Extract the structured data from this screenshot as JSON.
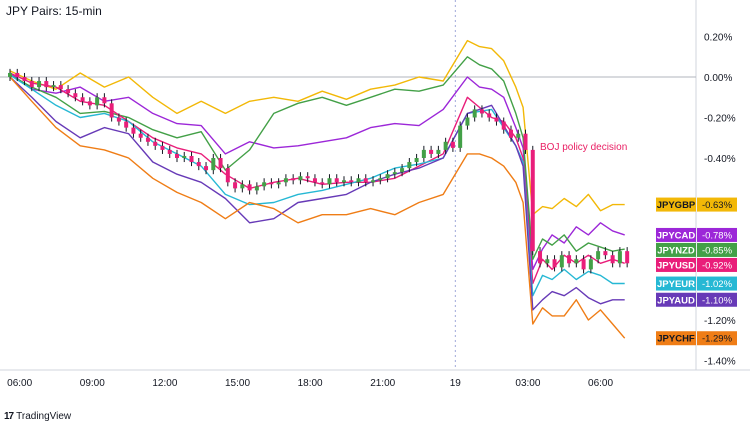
{
  "title": "JPY Pairs: 15-min",
  "watermark": "TradingView",
  "chart_data": {
    "type": "line",
    "ylim": [
      -1.45,
      0.28
    ],
    "y_ticks": [
      "0.20%",
      "0.00%",
      "-0.20%",
      "-0.40%",
      "-1.20%",
      "-1.40%"
    ],
    "y_tick_values": [
      0.2,
      0.0,
      -0.2,
      -0.4,
      -1.2,
      -1.4
    ],
    "x_tick_labels": [
      "06:00",
      "09:00",
      "12:00",
      "15:00",
      "18:00",
      "21:00",
      "19",
      "03:00",
      "06:00"
    ],
    "x_tick_hours": [
      6,
      9,
      12,
      15,
      18,
      21,
      24,
      27,
      30
    ],
    "x_start_hour": 5.6,
    "x_end_hour": 31.3,
    "session_break_hour": 24,
    "annotation": {
      "text": "BOJ policy decision",
      "x_hour": 27.5,
      "y": -0.36
    },
    "series": [
      {
        "name": "JPYGBP",
        "last": "-0.63%",
        "color": "#f2b807",
        "x": [
          5.6,
          6.5,
          7.5,
          8.5,
          9.5,
          10.5,
          11.5,
          12.5,
          13.5,
          14.5,
          15.5,
          16.5,
          17.5,
          18.5,
          19.5,
          20.5,
          21.5,
          22.5,
          23.5,
          24.5,
          25,
          25.5,
          26,
          26.5,
          26.8,
          27.2,
          27.6,
          28,
          28.5,
          29,
          29.5,
          30,
          30.5,
          31
        ],
        "y": [
          0.03,
          -0.02,
          -0.06,
          0.02,
          -0.05,
          0.0,
          -0.1,
          -0.18,
          -0.12,
          -0.18,
          -0.12,
          -0.1,
          -0.12,
          -0.07,
          -0.11,
          -0.06,
          -0.04,
          0.0,
          -0.02,
          0.18,
          0.15,
          0.14,
          0.08,
          -0.05,
          -0.15,
          -0.68,
          -0.64,
          -0.65,
          -0.6,
          -0.64,
          -0.58,
          -0.66,
          -0.63,
          -0.63
        ]
      },
      {
        "name": "JPYCAD",
        "last": "-0.78%",
        "color": "#9c27d8",
        "x": [
          5.6,
          6.5,
          7.5,
          8.5,
          9.5,
          10.5,
          11.5,
          12.5,
          13.5,
          14.5,
          15.5,
          16.5,
          17.5,
          18.5,
          19.5,
          20.5,
          21.5,
          22.5,
          23.5,
          24.5,
          25,
          25.5,
          26,
          26.5,
          26.8,
          27.2,
          27.6,
          28,
          28.5,
          29,
          29.5,
          30,
          30.5,
          31
        ],
        "y": [
          0.02,
          -0.06,
          -0.08,
          -0.05,
          -0.12,
          -0.1,
          -0.18,
          -0.23,
          -0.24,
          -0.38,
          -0.32,
          -0.35,
          -0.34,
          -0.32,
          -0.3,
          -0.25,
          -0.23,
          -0.24,
          -0.16,
          0.0,
          -0.05,
          -0.06,
          -0.1,
          -0.25,
          -0.35,
          -0.95,
          -0.85,
          -0.78,
          -0.82,
          -0.74,
          -0.78,
          -0.72,
          -0.76,
          -0.78
        ]
      },
      {
        "name": "JPYNZD",
        "last": "-0.85%",
        "color": "#43a047",
        "x": [
          5.6,
          6.5,
          7.5,
          8.5,
          9.5,
          10.5,
          11.5,
          12.5,
          13.5,
          14.5,
          15.5,
          16.5,
          17.5,
          18.5,
          19.5,
          20.5,
          21.5,
          22.5,
          23.5,
          24.5,
          25,
          25.5,
          26,
          26.5,
          26.8,
          27.2,
          27.6,
          28,
          28.5,
          29,
          29.5,
          30,
          30.5,
          31
        ],
        "y": [
          0.01,
          -0.05,
          -0.1,
          -0.18,
          -0.17,
          -0.2,
          -0.26,
          -0.3,
          -0.27,
          -0.46,
          -0.36,
          -0.18,
          -0.13,
          -0.1,
          -0.14,
          -0.1,
          -0.06,
          -0.07,
          -0.04,
          0.1,
          0.06,
          0.04,
          -0.02,
          -0.18,
          -0.3,
          -0.9,
          -0.8,
          -0.83,
          -0.78,
          -0.86,
          -0.82,
          -0.84,
          -0.86,
          -0.85
        ]
      },
      {
        "name": "JPYUSD",
        "last": "-0.92%",
        "color": "#e91e7a",
        "x": [
          5.6,
          6.5,
          7.5,
          8.5,
          9.5,
          10.5,
          11.5,
          12.5,
          13.5,
          14.5,
          15.5,
          16.5,
          17.5,
          18.5,
          19.5,
          20.5,
          21.5,
          22.5,
          23.5,
          24.5,
          25,
          25.5,
          26,
          26.5,
          26.8,
          27.2,
          27.6,
          28,
          28.5,
          29,
          29.5,
          30,
          30.5,
          31
        ],
        "y": [
          0.02,
          -0.03,
          -0.05,
          -0.12,
          -0.14,
          -0.22,
          -0.3,
          -0.35,
          -0.38,
          -0.48,
          -0.55,
          -0.52,
          -0.5,
          -0.53,
          -0.52,
          -0.52,
          -0.5,
          -0.44,
          -0.38,
          -0.1,
          -0.15,
          -0.2,
          -0.22,
          -0.3,
          -0.4,
          -1.02,
          -0.9,
          -0.95,
          -0.88,
          -0.92,
          -0.88,
          -0.92,
          -0.9,
          -0.92
        ]
      },
      {
        "name": "JPYEUR",
        "last": "-1.02%",
        "color": "#26b8d4",
        "x": [
          5.6,
          6.5,
          7.5,
          8.5,
          9.5,
          10.5,
          11.5,
          12.5,
          13.5,
          14.5,
          15.5,
          16.5,
          17.5,
          18.5,
          19.5,
          20.5,
          21.5,
          22.5,
          23.5,
          24.5,
          25,
          25.5,
          26,
          26.5,
          26.8,
          27.2,
          27.6,
          28,
          28.5,
          29,
          29.5,
          30,
          30.5,
          31
        ],
        "y": [
          0.01,
          -0.06,
          -0.14,
          -0.2,
          -0.18,
          -0.22,
          -0.32,
          -0.38,
          -0.44,
          -0.58,
          -0.63,
          -0.62,
          -0.58,
          -0.56,
          -0.53,
          -0.5,
          -0.45,
          -0.43,
          -0.4,
          -0.18,
          -0.17,
          -0.16,
          -0.25,
          -0.34,
          -0.42,
          -1.08,
          -0.98,
          -1.0,
          -0.95,
          -1.0,
          -0.96,
          -0.98,
          -1.02,
          -1.02
        ]
      },
      {
        "name": "JPYAUD",
        "last": "-1.10%",
        "color": "#673ab7",
        "x": [
          5.6,
          6.5,
          7.5,
          8.5,
          9.5,
          10.5,
          11.5,
          12.5,
          13.5,
          14.5,
          15.5,
          16.5,
          17.5,
          18.5,
          19.5,
          20.5,
          21.5,
          22.5,
          23.5,
          24.5,
          25,
          25.5,
          26,
          26.5,
          26.8,
          27.2,
          27.6,
          28,
          28.5,
          29,
          29.5,
          30,
          30.5,
          31
        ],
        "y": [
          0.0,
          -0.1,
          -0.22,
          -0.3,
          -0.25,
          -0.28,
          -0.42,
          -0.48,
          -0.52,
          -0.6,
          -0.72,
          -0.7,
          -0.62,
          -0.6,
          -0.58,
          -0.52,
          -0.48,
          -0.45,
          -0.4,
          -0.18,
          -0.16,
          -0.14,
          -0.24,
          -0.34,
          -0.44,
          -1.15,
          -1.1,
          -1.06,
          -1.08,
          -1.04,
          -1.09,
          -1.12,
          -1.1,
          -1.1
        ]
      },
      {
        "name": "JPYCHF",
        "last": "-1.29%",
        "color": "#ef7d16",
        "x": [
          5.6,
          6.5,
          7.5,
          8.5,
          9.5,
          10.5,
          11.5,
          12.5,
          13.5,
          14.5,
          15.5,
          16.5,
          17.5,
          18.5,
          19.5,
          20.5,
          21.5,
          22.5,
          23.5,
          24.5,
          25,
          25.5,
          26,
          26.5,
          26.8,
          27.2,
          27.6,
          28,
          28.5,
          29,
          29.5,
          30,
          30.5,
          31
        ],
        "y": [
          0.0,
          -0.12,
          -0.25,
          -0.34,
          -0.36,
          -0.4,
          -0.5,
          -0.57,
          -0.62,
          -0.7,
          -0.62,
          -0.65,
          -0.72,
          -0.68,
          -0.68,
          -0.65,
          -0.68,
          -0.62,
          -0.58,
          -0.38,
          -0.38,
          -0.4,
          -0.44,
          -0.52,
          -0.62,
          -1.22,
          -1.14,
          -1.18,
          -1.18,
          -1.1,
          -1.2,
          -1.15,
          -1.22,
          -1.29
        ]
      }
    ],
    "candles": {
      "x": [
        5.6,
        5.9,
        6.2,
        6.5,
        6.8,
        7.1,
        7.4,
        7.7,
        8.0,
        8.3,
        8.6,
        8.9,
        9.2,
        9.5,
        9.8,
        10.1,
        10.4,
        10.7,
        11.0,
        11.3,
        11.6,
        11.9,
        12.2,
        12.5,
        12.8,
        13.1,
        13.4,
        13.7,
        14.0,
        14.3,
        14.6,
        14.9,
        15.2,
        15.5,
        15.8,
        16.1,
        16.4,
        16.7,
        17.0,
        17.3,
        17.6,
        17.9,
        18.2,
        18.5,
        18.8,
        19.1,
        19.4,
        19.7,
        20.0,
        20.3,
        20.6,
        20.9,
        21.2,
        21.5,
        21.8,
        22.1,
        22.4,
        22.7,
        23.0,
        23.3,
        23.6,
        23.9,
        24.2,
        24.5,
        24.8,
        25.1,
        25.4,
        25.7,
        26.0,
        26.3,
        26.6,
        26.9,
        27.2,
        27.5,
        27.8,
        28.1,
        28.4,
        28.7,
        29.0,
        29.3,
        29.6,
        29.9,
        30.2,
        30.5,
        30.8,
        31.1
      ],
      "o": [
        0.0,
        0.02,
        0.0,
        -0.02,
        -0.05,
        -0.02,
        -0.05,
        -0.04,
        -0.06,
        -0.08,
        -0.1,
        -0.12,
        -0.14,
        -0.1,
        -0.13,
        -0.2,
        -0.22,
        -0.25,
        -0.28,
        -0.3,
        -0.32,
        -0.34,
        -0.36,
        -0.38,
        -0.4,
        -0.39,
        -0.42,
        -0.44,
        -0.46,
        -0.4,
        -0.45,
        -0.52,
        -0.55,
        -0.53,
        -0.56,
        -0.54,
        -0.52,
        -0.53,
        -0.52,
        -0.5,
        -0.51,
        -0.49,
        -0.5,
        -0.52,
        -0.53,
        -0.5,
        -0.52,
        -0.51,
        -0.52,
        -0.5,
        -0.52,
        -0.51,
        -0.5,
        -0.48,
        -0.47,
        -0.45,
        -0.42,
        -0.4,
        -0.36,
        -0.38,
        -0.36,
        -0.32,
        -0.35,
        -0.24,
        -0.2,
        -0.16,
        -0.18,
        -0.2,
        -0.22,
        -0.26,
        -0.3,
        -0.28,
        -0.36,
        -0.86,
        -0.92,
        -0.9,
        -0.94,
        -0.88,
        -0.92,
        -0.9,
        -0.95,
        -0.9,
        -0.86,
        -0.88,
        -0.92,
        -0.86
      ],
      "c": [
        0.02,
        0.0,
        -0.02,
        -0.05,
        -0.02,
        -0.05,
        -0.04,
        -0.06,
        -0.08,
        -0.1,
        -0.12,
        -0.14,
        -0.1,
        -0.13,
        -0.2,
        -0.22,
        -0.25,
        -0.28,
        -0.3,
        -0.32,
        -0.34,
        -0.36,
        -0.38,
        -0.4,
        -0.39,
        -0.42,
        -0.44,
        -0.46,
        -0.4,
        -0.45,
        -0.52,
        -0.55,
        -0.53,
        -0.56,
        -0.54,
        -0.52,
        -0.53,
        -0.52,
        -0.5,
        -0.51,
        -0.49,
        -0.5,
        -0.52,
        -0.53,
        -0.5,
        -0.52,
        -0.51,
        -0.52,
        -0.5,
        -0.52,
        -0.51,
        -0.5,
        -0.48,
        -0.47,
        -0.45,
        -0.42,
        -0.4,
        -0.36,
        -0.38,
        -0.36,
        -0.32,
        -0.35,
        -0.24,
        -0.2,
        -0.16,
        -0.18,
        -0.2,
        -0.22,
        -0.26,
        -0.3,
        -0.28,
        -0.36,
        -0.86,
        -0.92,
        -0.9,
        -0.94,
        -0.88,
        -0.92,
        -0.9,
        -0.95,
        -0.9,
        -0.86,
        -0.88,
        -0.92,
        -0.86,
        -0.92
      ],
      "up_color": "#43a047",
      "down_color": "#e91e7a"
    }
  }
}
